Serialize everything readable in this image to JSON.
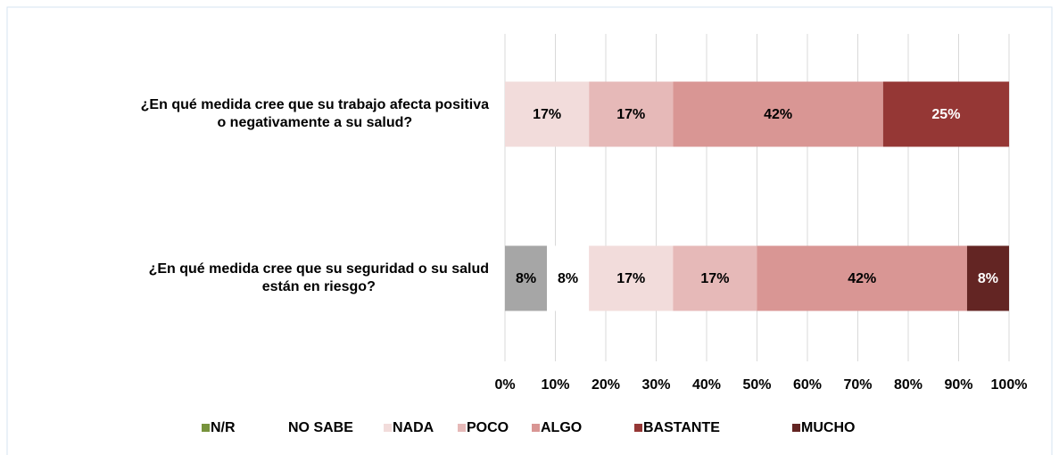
{
  "chart_data": {
    "type": "stacked_bar_horizontal",
    "categories": [
      [
        "¿En qué medida cree que su trabajo afecta positiva",
        "o negativamente a su salud?"
      ],
      [
        "¿En qué medida cree que su seguridad o su salud",
        "están en riesgo?"
      ]
    ],
    "series": [
      {
        "name": "N/R",
        "color": "#a6a6a6",
        "legend_color": "#77933c",
        "label_color": "#000000",
        "values": [
          null,
          8.33
        ],
        "value_labels": [
          null,
          "8%"
        ]
      },
      {
        "name": "NO SABE",
        "color": "#ffffff",
        "legend_color": "#ffffff",
        "label_color": "#000000",
        "values": [
          null,
          8.33
        ],
        "value_labels": [
          null,
          "8%"
        ]
      },
      {
        "name": "NADA",
        "color": "#f2dcdb",
        "legend_color": "#f2dcdb",
        "label_color": "#000000",
        "values": [
          16.67,
          16.67
        ],
        "value_labels": [
          "17%",
          "17%"
        ]
      },
      {
        "name": "POCO",
        "color": "#e6b9b8",
        "legend_color": "#e6b9b8",
        "label_color": "#000000",
        "values": [
          16.67,
          16.67
        ],
        "value_labels": [
          "17%",
          "17%"
        ]
      },
      {
        "name": "ALGO",
        "color": "#d99694",
        "legend_color": "#d99694",
        "label_color": "#000000",
        "values": [
          41.67,
          41.67
        ],
        "value_labels": [
          "42%",
          "42%"
        ]
      },
      {
        "name": "BASTANTE",
        "color": "#953735",
        "legend_color": "#953735",
        "label_color": "#ffffff",
        "values": [
          25,
          null
        ],
        "value_labels": [
          "25%",
          null
        ]
      },
      {
        "name": "MUCHO",
        "color": "#632523",
        "legend_color": "#632523",
        "label_color": "#ffffff",
        "values": [
          null,
          8.33
        ],
        "value_labels": [
          null,
          "8%"
        ]
      }
    ],
    "xlim": [
      0,
      100
    ],
    "xticks": [
      {
        "value": 0,
        "label": "0%"
      },
      {
        "value": 10,
        "label": "10%"
      },
      {
        "value": 20,
        "label": "20%"
      },
      {
        "value": 30,
        "label": "30%"
      },
      {
        "value": 40,
        "label": "40%"
      },
      {
        "value": 50,
        "label": "50%"
      },
      {
        "value": 60,
        "label": "60%"
      },
      {
        "value": 70,
        "label": "70%"
      },
      {
        "value": 80,
        "label": "80%"
      },
      {
        "value": 90,
        "label": "90%"
      },
      {
        "value": 100,
        "label": "100%"
      }
    ],
    "grid": true,
    "legend": "bottom"
  }
}
